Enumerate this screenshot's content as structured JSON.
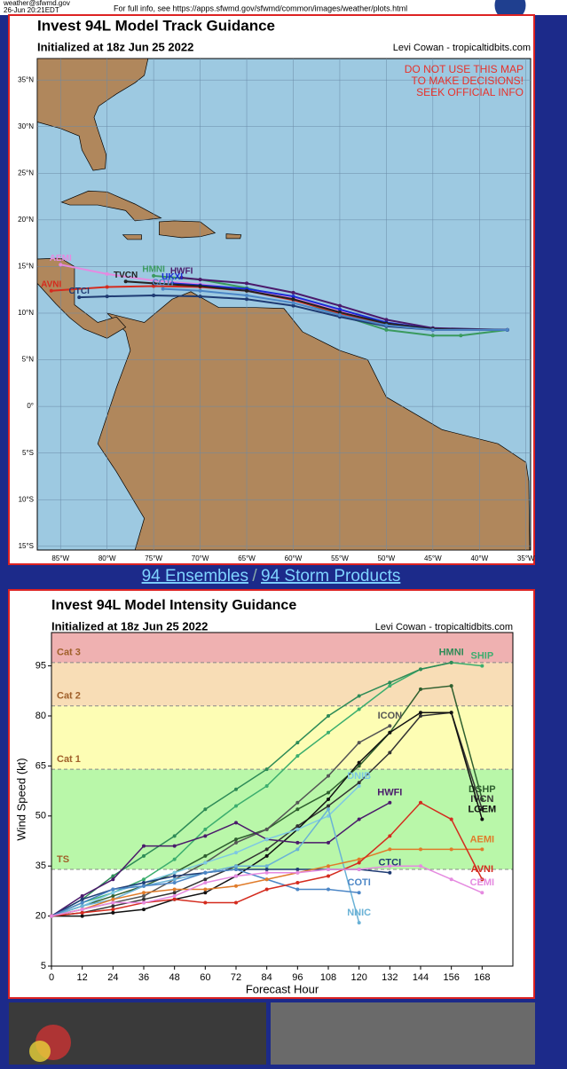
{
  "header": {
    "email": "weather@sfwmd.gov",
    "timestamp": "26-Jun 20:21EDT",
    "info": "For full info, see  https://apps.sfwmd.gov/sfwmd/common/images/weather/plots.html"
  },
  "chart_data": [
    {
      "type": "track",
      "title": "Invest 94L Model Track Guidance",
      "subtitle": "Initialized at 18z Jun 25 2022",
      "credit": "Levi Cowan - tropicaltidbits.com",
      "annotation_lines": [
        "DO NOT USE THIS MAP",
        "TO MAKE DECISIONS!",
        "SEEK OFFICIAL INFO"
      ],
      "xlim": [
        -87.5,
        -34.5
      ],
      "ylim": [
        -15.4,
        37.3
      ],
      "xticks": [
        {
          "value": -85,
          "label": "85°W"
        },
        {
          "value": -80,
          "label": "80°W"
        },
        {
          "value": -75,
          "label": "75°W"
        },
        {
          "value": -70,
          "label": "70°W"
        },
        {
          "value": -65,
          "label": "65°W"
        },
        {
          "value": -60,
          "label": "60°W"
        },
        {
          "value": -55,
          "label": "55°W"
        },
        {
          "value": -50,
          "label": "50°W"
        },
        {
          "value": -45,
          "label": "45°W"
        },
        {
          "value": -40,
          "label": "40°W"
        },
        {
          "value": -35,
          "label": "35°W"
        }
      ],
      "yticks": [
        {
          "value": -15,
          "label": "15°S"
        },
        {
          "value": -10,
          "label": "10°S"
        },
        {
          "value": -5,
          "label": "5°S"
        },
        {
          "value": 0,
          "label": "0°"
        },
        {
          "value": 5,
          "label": "5°N"
        },
        {
          "value": 10,
          "label": "10°N"
        },
        {
          "value": 15,
          "label": "15°N"
        },
        {
          "value": 20,
          "label": "20°N"
        },
        {
          "value": 25,
          "label": "25°N"
        },
        {
          "value": 30,
          "label": "30°N"
        },
        {
          "value": 35,
          "label": "35°N"
        }
      ],
      "grid": true,
      "series": [
        {
          "name": "HMNI",
          "color": "#3a9a5e",
          "x": [
            -37,
            -42,
            -45,
            -50,
            -55,
            -60,
            -65,
            -70,
            -75
          ],
          "values": [
            8.2,
            7.6,
            7.6,
            8.2,
            9.8,
            11.5,
            12.7,
            13.6,
            14
          ]
        },
        {
          "name": "AEMI",
          "color": "#e58ae0",
          "x": [
            -37,
            -45,
            -50,
            -55,
            -60,
            -65,
            -70,
            -75,
            -80,
            -85
          ],
          "values": [
            8.2,
            8.3,
            9,
            10.2,
            11.6,
            12.5,
            13.1,
            13.5,
            14.2,
            15.2
          ]
        },
        {
          "name": "AVNI",
          "color": "#d42b1e",
          "x": [
            -37,
            -45,
            -50,
            -55,
            -60,
            -65,
            -70,
            -75,
            -80,
            -86
          ],
          "values": [
            8.2,
            8.2,
            8.8,
            10,
            11.4,
            12.4,
            12.8,
            12.9,
            12.8,
            12.4
          ]
        },
        {
          "name": "HWFI",
          "color": "#4b1a6b",
          "x": [
            -37,
            -45,
            -50,
            -55,
            -60,
            -65,
            -70,
            -72
          ],
          "values": [
            8.2,
            8.4,
            9.3,
            10.8,
            12.2,
            13.2,
            13.6,
            13.8
          ]
        },
        {
          "name": "UKXI",
          "color": "#1a2bd6",
          "x": [
            -37,
            -45,
            -50,
            -55,
            -60,
            -65,
            -70,
            -73
          ],
          "values": [
            8.2,
            8.3,
            9,
            10.4,
            11.8,
            12.6,
            13,
            13.2
          ]
        },
        {
          "name": "TVCN",
          "color": "#222222",
          "x": [
            -37,
            -45,
            -50,
            -55,
            -60,
            -65,
            -70,
            -75,
            -78
          ],
          "values": [
            8.2,
            8.3,
            8.9,
            10.1,
            11.5,
            12.4,
            12.9,
            13.2,
            13.4
          ]
        },
        {
          "name": "CTCI",
          "color": "#1f3b73",
          "x": [
            -37,
            -45,
            -50,
            -55,
            -60,
            -65,
            -70,
            -75,
            -80,
            -83
          ],
          "values": [
            8.2,
            8.2,
            8.6,
            9.6,
            10.8,
            11.5,
            11.8,
            11.9,
            11.8,
            11.7
          ]
        },
        {
          "name": "COTI",
          "color": "#4c86c6",
          "x": [
            -37,
            -45,
            -50,
            -55,
            -60,
            -65,
            -70,
            -74
          ],
          "values": [
            8.2,
            8.2,
            8.7,
            9.8,
            11.1,
            11.9,
            12.4,
            12.6
          ]
        }
      ]
    },
    {
      "type": "line",
      "title": "Invest 94L Model Intensity Guidance",
      "subtitle": "Initialized at 18z Jun 25 2022",
      "credit": "Levi Cowan - tropicaltidbits.com",
      "xlabel": "Forecast Hour",
      "ylabel": "Wind Speed (kt)",
      "xlim": [
        0,
        180
      ],
      "ylim": [
        5,
        105
      ],
      "xticks": [
        0,
        12,
        24,
        36,
        48,
        60,
        72,
        84,
        96,
        108,
        120,
        132,
        144,
        156,
        168
      ],
      "yticks": [
        5,
        20,
        35,
        50,
        65,
        80,
        95
      ],
      "bands": [
        {
          "label": "TS",
          "from": 34,
          "to": 64,
          "color": "#b9f7a9"
        },
        {
          "label": "Cat 1",
          "from": 64,
          "to": 83,
          "color": "#fdfdb4"
        },
        {
          "label": "Cat 2",
          "from": 83,
          "to": 96,
          "color": "#f8ddb6"
        },
        {
          "label": "Cat 3",
          "from": 96,
          "to": 105,
          "color": "#efb1b1"
        }
      ],
      "x": [
        0,
        12,
        24,
        36,
        48,
        60,
        72,
        84,
        96,
        108,
        120,
        132,
        144,
        156,
        168
      ],
      "series": [
        {
          "name": "SHIP",
          "color": "#3cae6e",
          "values": [
            20,
            24,
            27,
            31,
            37,
            46,
            53,
            59,
            68,
            75,
            82,
            89,
            94,
            96,
            95
          ]
        },
        {
          "name": "HMNI",
          "color": "#2e8b57",
          "values": [
            20,
            25,
            32,
            38,
            44,
            52,
            58,
            64,
            72,
            80,
            86,
            90,
            94,
            96,
            null
          ]
        },
        {
          "name": "DSHP",
          "color": "#2f5f2f",
          "values": [
            20,
            23,
            26,
            29,
            33,
            38,
            43,
            46,
            52,
            57,
            65,
            75,
            88,
            89,
            55
          ]
        },
        {
          "name": "IVCN",
          "color": "#333333",
          "values": [
            20,
            21,
            23,
            25,
            27,
            31,
            35,
            40,
            47,
            53,
            60,
            69,
            80,
            81,
            52
          ]
        },
        {
          "name": "LGEM",
          "color": "#111111",
          "values": [
            20,
            20,
            21,
            22,
            25,
            27,
            32,
            38,
            46,
            55,
            66,
            75,
            81,
            81,
            49
          ]
        },
        {
          "name": "ICON",
          "color": "#555555",
          "values": [
            20,
            22,
            24,
            26,
            31,
            36,
            42,
            46,
            54,
            62,
            72,
            77,
            null,
            null,
            null
          ]
        },
        {
          "name": "HWFI",
          "color": "#4b1a6b",
          "values": [
            20,
            26,
            31,
            41,
            41,
            44,
            48,
            43,
            42,
            42,
            49,
            54,
            null,
            null,
            null
          ]
        },
        {
          "name": "DNIB",
          "color": "#7ec8e3",
          "values": [
            20,
            23,
            27,
            30,
            33,
            36,
            39,
            43,
            46,
            50,
            59,
            null,
            null,
            null,
            null
          ]
        },
        {
          "name": "NNIC",
          "color": "#6ab2d6",
          "values": [
            20,
            23,
            25,
            29,
            31,
            33,
            35,
            35,
            40,
            52,
            18,
            null,
            null,
            null,
            null
          ]
        },
        {
          "name": "CTCI",
          "color": "#1f3b73",
          "values": [
            20,
            25,
            28,
            30,
            32,
            33,
            34,
            34,
            34,
            34,
            34,
            33,
            null,
            null,
            null
          ]
        },
        {
          "name": "COTI",
          "color": "#4c86c6",
          "values": [
            20,
            24,
            28,
            29,
            30,
            33,
            34,
            31,
            28,
            28,
            27,
            null,
            null,
            null,
            null
          ]
        },
        {
          "name": "AEMI",
          "color": "#e07b2a",
          "values": [
            20,
            22,
            25,
            27,
            28,
            28,
            29,
            31,
            33,
            35,
            37,
            40,
            40,
            40,
            40
          ]
        },
        {
          "name": "AVNI",
          "color": "#d42b1e",
          "values": [
            20,
            21,
            22,
            24,
            25,
            24,
            24,
            28,
            30,
            32,
            36,
            44,
            54,
            49,
            31
          ]
        },
        {
          "name": "CEMI",
          "color": "#e58ae0",
          "values": [
            20,
            22,
            24,
            24,
            26,
            30,
            32,
            33,
            33,
            34,
            34,
            35,
            35,
            31,
            27
          ]
        }
      ]
    }
  ],
  "links": [
    "94 Ensembles",
    "94 Storm Products"
  ],
  "link_separator": "/"
}
